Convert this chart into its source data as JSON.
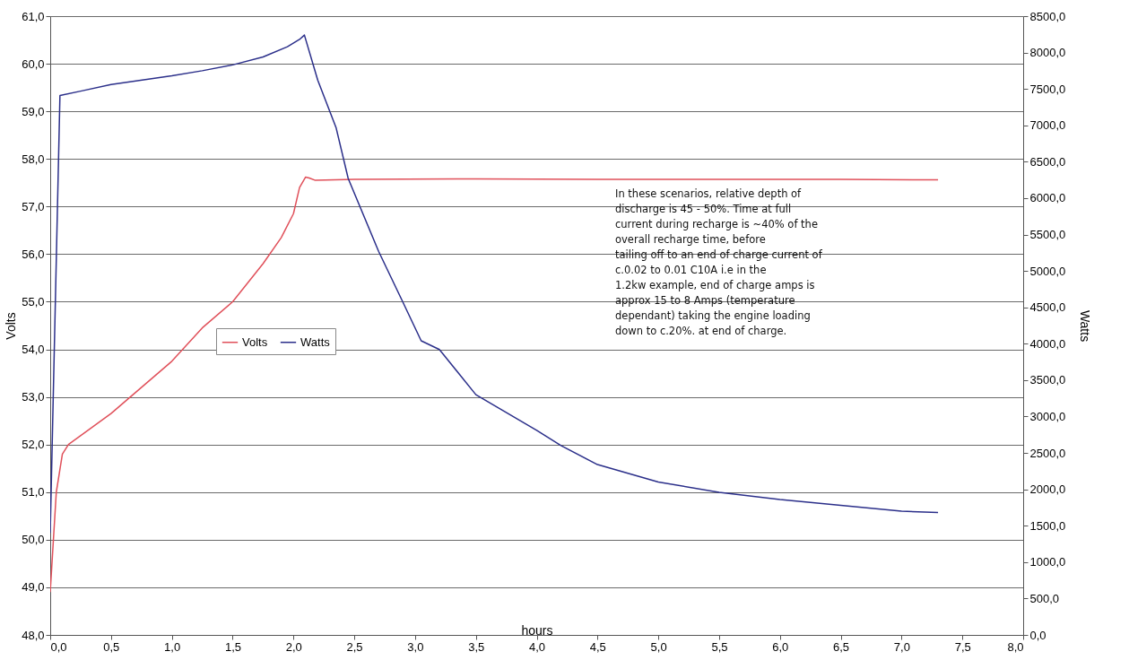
{
  "chart_data": {
    "type": "line",
    "xlabel": "hours",
    "ylabel": "Volts",
    "y2label": "Watts",
    "xlim": [
      0,
      8
    ],
    "xticks": [
      {
        "value": 0,
        "label": "0,0"
      },
      {
        "value": 0.5,
        "label": "0,5"
      },
      {
        "value": 1,
        "label": "1,0"
      },
      {
        "value": 1.5,
        "label": "1,5"
      },
      {
        "value": 2,
        "label": "2,0"
      },
      {
        "value": 2.5,
        "label": "2,5"
      },
      {
        "value": 3,
        "label": "3,0"
      },
      {
        "value": 3.5,
        "label": "3,5"
      },
      {
        "value": 4,
        "label": "4,0"
      },
      {
        "value": 4.5,
        "label": "4,5"
      },
      {
        "value": 5,
        "label": "5,0"
      },
      {
        "value": 5.5,
        "label": "5,5"
      },
      {
        "value": 6,
        "label": "6,0"
      },
      {
        "value": 6.5,
        "label": "6,5"
      },
      {
        "value": 7,
        "label": "7,0"
      },
      {
        "value": 7.5,
        "label": "7,5"
      },
      {
        "value": 8,
        "label": "8,0"
      }
    ],
    "ylim": [
      48,
      61
    ],
    "yticks": [
      {
        "value": 48,
        "label": "48,0"
      },
      {
        "value": 49,
        "label": "49,0"
      },
      {
        "value": 50,
        "label": "50,0"
      },
      {
        "value": 51,
        "label": "51,0"
      },
      {
        "value": 52,
        "label": "52,0"
      },
      {
        "value": 53,
        "label": "53,0"
      },
      {
        "value": 54,
        "label": "54,0"
      },
      {
        "value": 55,
        "label": "55,0"
      },
      {
        "value": 56,
        "label": "56,0"
      },
      {
        "value": 57,
        "label": "57,0"
      },
      {
        "value": 58,
        "label": "58,0"
      },
      {
        "value": 59,
        "label": "59,0"
      },
      {
        "value": 60,
        "label": "60,0"
      },
      {
        "value": 61,
        "label": "61,0"
      }
    ],
    "y2lim": [
      0,
      8500
    ],
    "y2ticks": [
      {
        "value": 0,
        "label": "0,0"
      },
      {
        "value": 500,
        "label": "500,0"
      },
      {
        "value": 1000,
        "label": "1000,0"
      },
      {
        "value": 1500,
        "label": "1500,0"
      },
      {
        "value": 2000,
        "label": "2000,0"
      },
      {
        "value": 2500,
        "label": "2500,0"
      },
      {
        "value": 3000,
        "label": "3000,0"
      },
      {
        "value": 3500,
        "label": "3500,0"
      },
      {
        "value": 4000,
        "label": "4000,0"
      },
      {
        "value": 4500,
        "label": "4500,0"
      },
      {
        "value": 5000,
        "label": "5000,0"
      },
      {
        "value": 5500,
        "label": "5500,0"
      },
      {
        "value": 6000,
        "label": "6000,0"
      },
      {
        "value": 6500,
        "label": "6500,0"
      },
      {
        "value": 7000,
        "label": "7000,0"
      },
      {
        "value": 7500,
        "label": "7500,0"
      },
      {
        "value": 8000,
        "label": "8000,0"
      },
      {
        "value": 8500,
        "label": "8500,0"
      }
    ],
    "grid": "y",
    "legend": "left",
    "marker": "none",
    "line_style": "solid",
    "series": [
      {
        "name": "Volts",
        "color": "#e0505a",
        "x": [
          0,
          0.05,
          0.1,
          0.15,
          0.5,
          1.0,
          1.25,
          1.5,
          1.75,
          1.9,
          2.0,
          2.05,
          2.1,
          2.13,
          2.18,
          2.5,
          3.5,
          4.5,
          5.5,
          6.5,
          7.3
        ],
        "values": [
          48.9,
          51.0,
          51.8,
          52.0,
          52.65,
          53.75,
          54.45,
          55.0,
          55.8,
          56.35,
          56.85,
          57.4,
          57.62,
          57.6,
          57.55,
          57.57,
          57.58,
          57.57,
          57.57,
          57.57,
          57.56
        ]
      },
      {
        "name": "Watts",
        "color": "#2b2f8a",
        "axis": "y2",
        "x": [
          0,
          0.08,
          0.25,
          0.5,
          1.0,
          1.25,
          1.5,
          1.75,
          1.95,
          2.05,
          2.09,
          2.2,
          2.35,
          2.45,
          2.7,
          2.9,
          3.05,
          3.2,
          3.5,
          4.0,
          4.2,
          4.5,
          5.0,
          5.5,
          6.0,
          6.5,
          7.0,
          7.3
        ],
        "values": [
          1400,
          7410,
          7470,
          7560,
          7680,
          7750,
          7830,
          7940,
          8080,
          8180,
          8240,
          7620,
          6970,
          6270,
          5270,
          4570,
          4040,
          3920,
          3300,
          2810,
          2600,
          2340,
          2100,
          1960,
          1860,
          1780,
          1700,
          1680
        ]
      }
    ],
    "annotations": [
      "In these scenarios, relative depth of\ndischarge is 45 - 50%. Time at full\ncurrent during recharge is ~40% of the\noverall recharge time, before\ntailing off to an end of charge current of\nc.0.02 to 0.01 C10A i.e in the\n1.2kw example, end of charge amps is\napprox 15 to 8 Amps (temperature\ndependant) taking the engine loading\ndown to c.20%. at end of charge."
    ]
  }
}
